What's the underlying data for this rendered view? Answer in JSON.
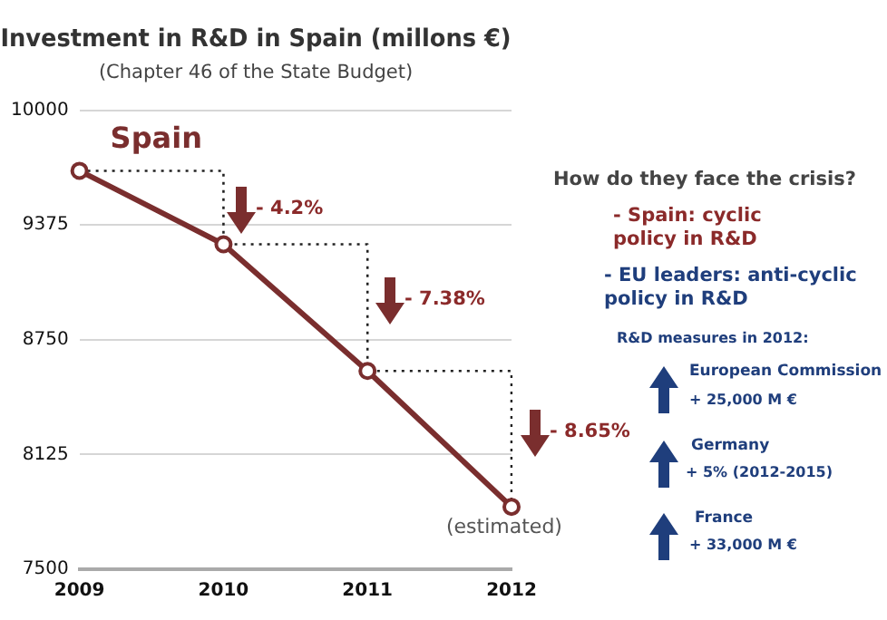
{
  "chart_data": {
    "type": "line",
    "title": "Investment in R&D in Spain (millons €)",
    "subtitle": "(Chapter 46 of the State Budget)",
    "categories": [
      "2009",
      "2010",
      "2011",
      "2012"
    ],
    "series": [
      {
        "name": "Spain",
        "color": "#7a2e2e",
        "marker": "circle",
        "values": [
          9670,
          9270,
          8580,
          7840
        ]
      },
      {
        "type": "step",
        "color": "#222222",
        "line_style": "dotted",
        "marker": "none",
        "values": [
          9670,
          9270,
          8580,
          7840
        ]
      }
    ],
    "ylim": [
      7500,
      10000
    ],
    "yticks": [
      7500,
      8125,
      8750,
      9375,
      10000
    ],
    "grid": "y",
    "legend": false,
    "annotations": [
      "- 4.2%",
      "- 7.38%",
      "- 8.65%",
      "(estimated)",
      "How do they face the crisis?",
      "- Spain: cyclic\npolicy in R&D",
      "- EU leaders: anti-cyclic\npolicy in R&D",
      "R&D measures in 2012:",
      "European Commission",
      "+ 25,000 M €",
      "Germany",
      "+ 5% (2012-2015)",
      "France",
      "+ 33,000 M €"
    ]
  }
}
